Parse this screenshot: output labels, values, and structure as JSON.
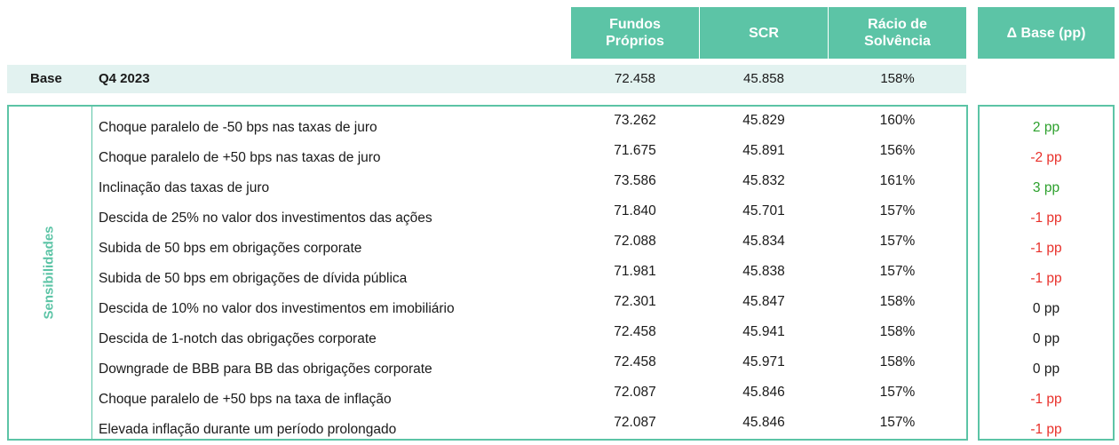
{
  "header": {
    "fundos_proprios": "Fundos Próprios",
    "scr": "SCR",
    "racio_solvencia": "Rácio de Solvência",
    "delta_base": "Δ Base (pp)"
  },
  "base": {
    "label": "Base",
    "period": "Q4 2023",
    "fundos_proprios": "72.458",
    "scr": "45.858",
    "racio": "158%"
  },
  "sensitivities_label": "Sensibilidades",
  "rows": [
    {
      "label": "Choque paralelo de -50 bps nas taxas de juro",
      "fp": "73.262",
      "scr": "45.829",
      "racio": "160%",
      "delta": "2 pp",
      "sign": "pos"
    },
    {
      "label": "Choque paralelo de +50 bps nas taxas de juro",
      "fp": "71.675",
      "scr": "45.891",
      "racio": "156%",
      "delta": "-2 pp",
      "sign": "neg"
    },
    {
      "label": "Inclinação das taxas de juro",
      "fp": "73.586",
      "scr": "45.832",
      "racio": "161%",
      "delta": "3 pp",
      "sign": "pos"
    },
    {
      "label": "Descida de 25% no valor dos investimentos das ações",
      "fp": "71.840",
      "scr": "45.701",
      "racio": "157%",
      "delta": "-1 pp",
      "sign": "neg"
    },
    {
      "label": "Subida de 50 bps em obrigações corporate",
      "fp": "72.088",
      "scr": "45.834",
      "racio": "157%",
      "delta": "-1 pp",
      "sign": "neg"
    },
    {
      "label": "Subida de 50 bps em obrigações de dívida pública",
      "fp": "71.981",
      "scr": "45.838",
      "racio": "157%",
      "delta": "-1 pp",
      "sign": "neg"
    },
    {
      "label": "Descida de 10% no valor dos investimentos em imobiliário",
      "fp": "72.301",
      "scr": "45.847",
      "racio": "158%",
      "delta": "0 pp",
      "sign": "zero"
    },
    {
      "label": "Descida de 1-notch das obrigações corporate",
      "fp": "72.458",
      "scr": "45.941",
      "racio": "158%",
      "delta": "0 pp",
      "sign": "zero"
    },
    {
      "label": "Downgrade de BBB para BB das obrigações corporate",
      "fp": "72.458",
      "scr": "45.971",
      "racio": "158%",
      "delta": "0 pp",
      "sign": "zero"
    },
    {
      "label": "Choque paralelo de +50 bps na taxa de inflação",
      "fp": "72.087",
      "scr": "45.846",
      "racio": "157%",
      "delta": "-1 pp",
      "sign": "neg"
    },
    {
      "label": "Elevada inflação durante um período prolongado",
      "fp": "72.087",
      "scr": "45.846",
      "racio": "157%",
      "delta": "-1 pp",
      "sign": "neg"
    }
  ]
}
